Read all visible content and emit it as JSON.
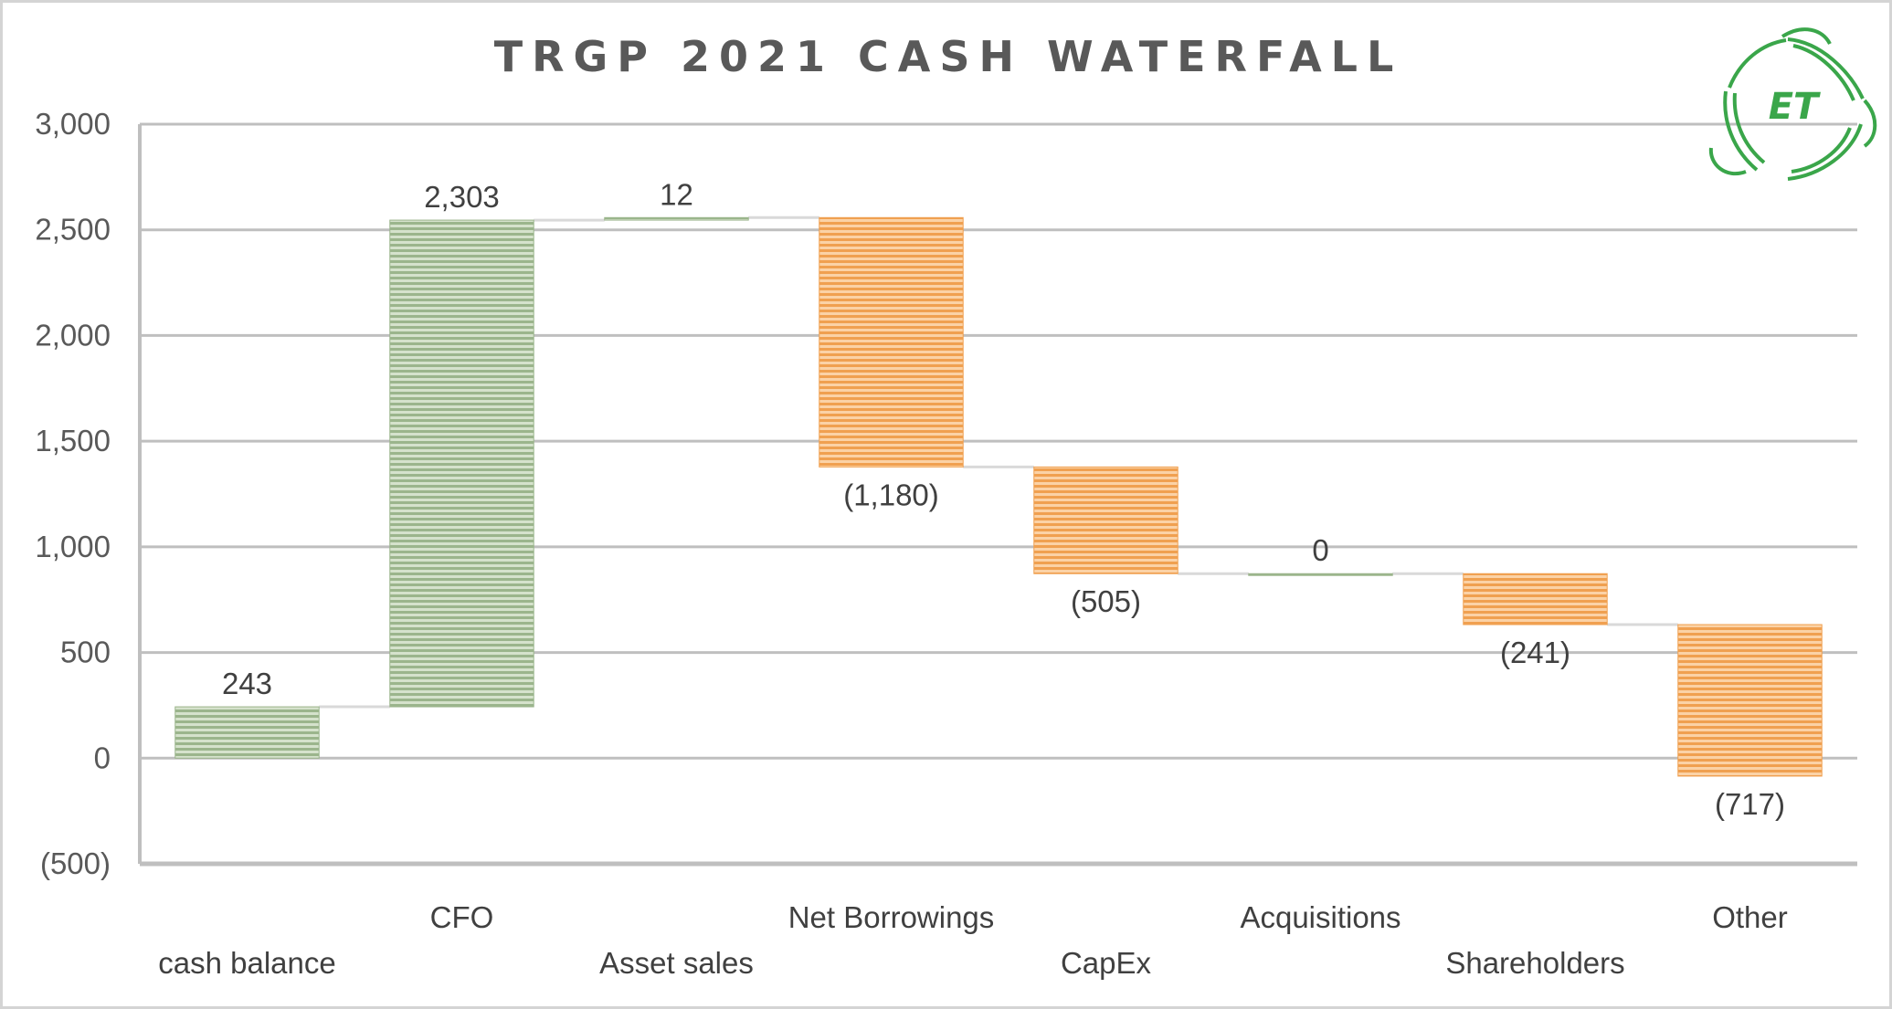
{
  "chart_data": {
    "type": "bar",
    "subtype": "waterfall",
    "title": "TRGP 2021 CASH WATERFALL",
    "categories": [
      "cash balance",
      "CFO",
      "Asset sales",
      "Net Borrowings",
      "CapEx",
      "Acquisitions",
      "Shareholders",
      "Other"
    ],
    "values": [
      243,
      2303,
      12,
      -1180,
      -505,
      0,
      -241,
      -717
    ],
    "data_labels": [
      "243",
      "2,303",
      "12",
      "(1,180)",
      "(505)",
      "0",
      "(241)",
      "(717)"
    ],
    "ylim": [
      -500,
      3000
    ],
    "yticks": [
      3000,
      2500,
      2000,
      1500,
      1000,
      500,
      0,
      -500
    ],
    "ytick_labels": [
      "3,000",
      "2,500",
      "2,000",
      "1,500",
      "1,000",
      "500",
      "0",
      "(500)"
    ],
    "xlabel": "",
    "ylabel": "",
    "grid": true,
    "legend": "none",
    "colors": {
      "increase": "#9bb58c",
      "decrease": "#f0a050",
      "gridline": "#bfbfbf",
      "axis": "#bfbfbf",
      "connector": "#d9d9d9",
      "logo": "#3aa64a"
    }
  },
  "logo": {
    "text": "ET",
    "icon": "recycle-leaf-logo-icon"
  }
}
